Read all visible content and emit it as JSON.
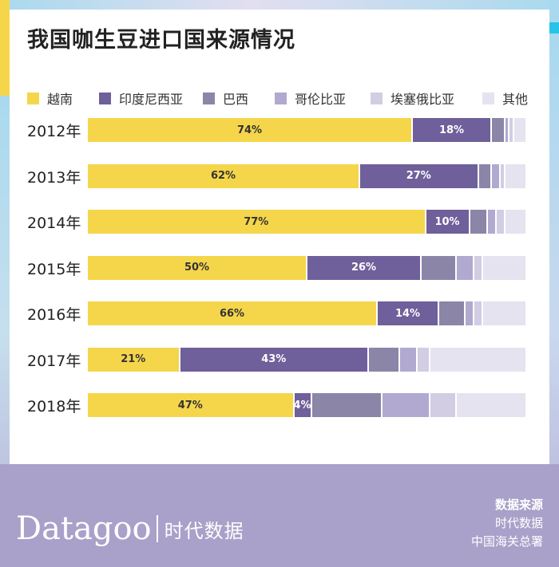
{
  "title": "我国咖生豆进口国来源情况",
  "colors": {
    "越南": "#f5d64b",
    "印度尼西亚": "#6f5f9a",
    "巴西": "#8b85a8",
    "哥伦比亚": "#b1a9cf",
    "埃塞俄比亚": "#d2cde3",
    "其他": "#e5e3ef"
  },
  "chart_data": {
    "type": "bar",
    "orientation": "horizontal-stacked-100",
    "categories": [
      "2012年",
      "2013年",
      "2014年",
      "2015年",
      "2016年",
      "2017年",
      "2018年"
    ],
    "series": [
      {
        "name": "越南",
        "values": [
          74,
          62,
          77,
          50,
          66,
          21,
          47
        ]
      },
      {
        "name": "印度尼西亚",
        "values": [
          18,
          27,
          10,
          26,
          14,
          43,
          4
        ]
      },
      {
        "name": "巴西",
        "values": [
          3,
          3,
          4,
          8,
          6,
          7,
          16
        ]
      },
      {
        "name": "哥伦比亚",
        "values": [
          1,
          2,
          2,
          4,
          2,
          4,
          11
        ]
      },
      {
        "name": "埃塞俄比亚",
        "values": [
          1,
          1,
          2,
          2,
          2,
          3,
          6
        ]
      },
      {
        "name": "其他",
        "values": [
          3,
          5,
          5,
          10,
          10,
          22,
          16
        ]
      }
    ],
    "data_labels": [
      [
        "74%",
        "18%"
      ],
      [
        "62%",
        "27%"
      ],
      [
        "77%",
        "10%"
      ],
      [
        "50%",
        "26%"
      ],
      [
        "66%",
        "14%"
      ],
      [
        "21%",
        "43%"
      ],
      [
        "47%",
        "4%"
      ]
    ],
    "legend": [
      "越南",
      "印度尼西亚",
      "巴西",
      "哥伦比亚",
      "埃塞俄比亚",
      "其他"
    ],
    "legend_position": "top",
    "xlim": [
      0,
      100
    ]
  },
  "brand": {
    "name": "Datagoo",
    "cn": "时代数据"
  },
  "source": {
    "title": "数据来源",
    "lines": [
      "时代数据",
      "中国海关总署"
    ]
  }
}
